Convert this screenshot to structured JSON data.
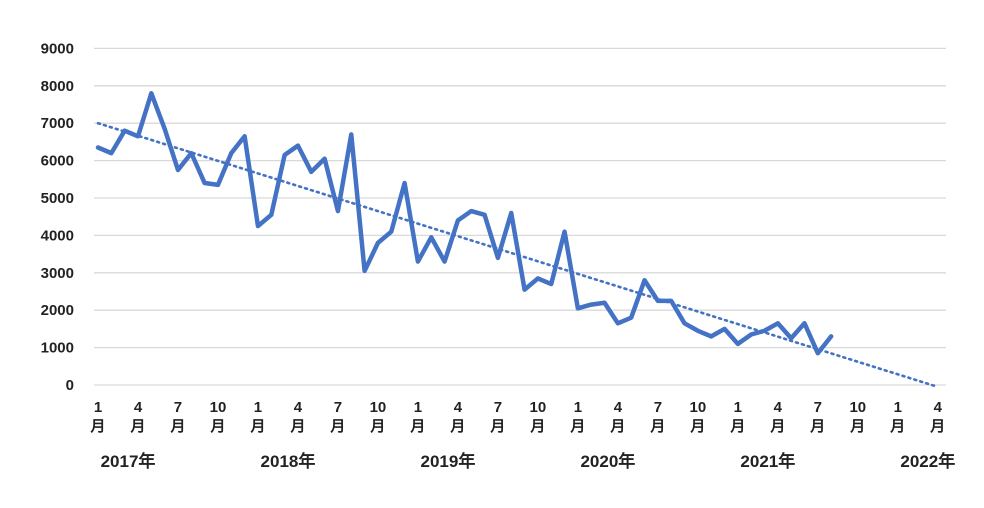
{
  "chart_data": {
    "type": "line",
    "title": "",
    "xlabel": "",
    "ylabel": "",
    "ylim": [
      0,
      9000
    ],
    "y_ticks": [
      "0",
      "1000",
      "2000",
      "3000",
      "4000",
      "5000",
      "6000",
      "7000",
      "8000",
      "9000"
    ],
    "x_tick_labels": [
      {
        "month": "1",
        "unit": "月"
      },
      {
        "month": "4",
        "unit": "月"
      },
      {
        "month": "7",
        "unit": "月"
      },
      {
        "month": "10",
        "unit": "月"
      },
      {
        "month": "1",
        "unit": "月"
      },
      {
        "month": "4",
        "unit": "月"
      },
      {
        "month": "7",
        "unit": "月"
      },
      {
        "month": "10",
        "unit": "月"
      },
      {
        "month": "1",
        "unit": "月"
      },
      {
        "month": "4",
        "unit": "月"
      },
      {
        "month": "7",
        "unit": "月"
      },
      {
        "month": "10",
        "unit": "月"
      },
      {
        "month": "1",
        "unit": "月"
      },
      {
        "month": "4",
        "unit": "月"
      },
      {
        "month": "7",
        "unit": "月"
      },
      {
        "month": "10",
        "unit": "月"
      },
      {
        "month": "1",
        "unit": "月"
      },
      {
        "month": "4",
        "unit": "月"
      },
      {
        "month": "7",
        "unit": "月"
      },
      {
        "month": "10",
        "unit": "月"
      },
      {
        "month": "1",
        "unit": "月"
      },
      {
        "month": "4",
        "unit": "月"
      }
    ],
    "year_labels": [
      "2017年",
      "2018年",
      "2019年",
      "2020年",
      "2021年",
      "2022年"
    ],
    "x": [
      "2017-01",
      "2017-02",
      "2017-03",
      "2017-04",
      "2017-05",
      "2017-06",
      "2017-07",
      "2017-08",
      "2017-09",
      "2017-10",
      "2017-11",
      "2017-12",
      "2018-01",
      "2018-02",
      "2018-03",
      "2018-04",
      "2018-05",
      "2018-06",
      "2018-07",
      "2018-08",
      "2018-09",
      "2018-10",
      "2018-11",
      "2018-12",
      "2019-01",
      "2019-02",
      "2019-03",
      "2019-04",
      "2019-05",
      "2019-06",
      "2019-07",
      "2019-08",
      "2019-09",
      "2019-10",
      "2019-11",
      "2019-12",
      "2020-01",
      "2020-02",
      "2020-03",
      "2020-04",
      "2020-05",
      "2020-06",
      "2020-07",
      "2020-08",
      "2020-09",
      "2020-10",
      "2020-11",
      "2020-12",
      "2021-01",
      "2021-02",
      "2021-03",
      "2021-04",
      "2021-05",
      "2021-06",
      "2021-07",
      "2021-08"
    ],
    "series": [
      {
        "values": [
          6350,
          6200,
          6800,
          6650,
          7800,
          6850,
          5750,
          6200,
          5400,
          5350,
          6200,
          6650,
          4250,
          4550,
          6150,
          6400,
          5700,
          6050,
          4650,
          6700,
          3050,
          3800,
          4100,
          5400,
          3300,
          3950,
          3300,
          4400,
          4650,
          4550,
          3400,
          4600,
          2550,
          2850,
          2700,
          4100,
          2050,
          2150,
          2200,
          1650,
          1800,
          2800,
          2250,
          2250,
          1650,
          1450,
          1300,
          1500,
          1100,
          1350,
          1450,
          1650,
          1250,
          1650,
          850,
          1300
        ],
        "color": "#4472c4"
      }
    ],
    "trendline": {
      "style": "dotted linear",
      "start": [
        "2017-01",
        7000
      ],
      "end": [
        "2022-04",
        -50
      ],
      "color": "#4472c4"
    },
    "grid": true,
    "legend": "none"
  }
}
